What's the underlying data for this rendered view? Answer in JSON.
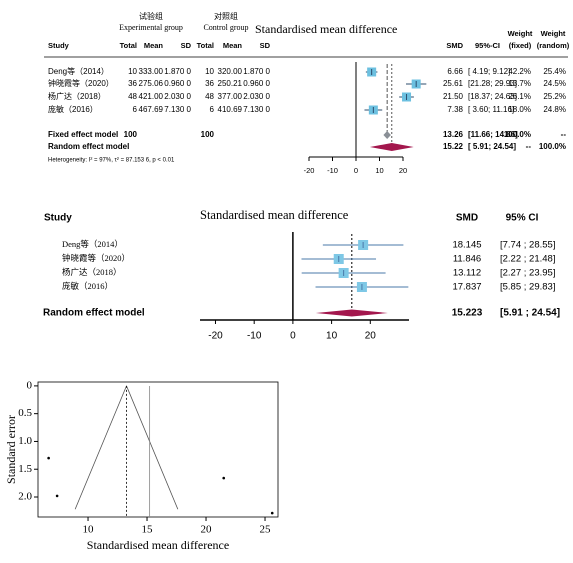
{
  "chart_data": [
    {
      "type": "forest",
      "title": "Standardised mean difference",
      "groups": [
        {
          "name": "试验组",
          "subtitle": "Experimental group"
        },
        {
          "name": "对照组",
          "subtitle": "Control group"
        }
      ],
      "columns": [
        "Study",
        "Total",
        "Mean",
        "SD",
        "Total",
        "Mean",
        "SD",
        "SMD",
        "95%-CI"
      ],
      "weight_headers": [
        [
          "Weight",
          "(fixed)"
        ],
        [
          "Weight",
          "(random)"
        ]
      ],
      "studies": [
        "Deng等（2014）",
        "钟晓霞等（2020）",
        "杨广达（2018）",
        "庞敏（2016）"
      ],
      "table": [
        [
          "10",
          "333.00",
          "1.870 0",
          "10",
          "320.00",
          "1.870 0"
        ],
        [
          "36",
          "275.06",
          "0.960 0",
          "36",
          "250.21",
          "0.960 0"
        ],
        [
          "48",
          "421.00",
          "2.030 0",
          "48",
          "377.00",
          "2.030 0"
        ],
        [
          "6",
          "467.69",
          "7.130 0",
          "6",
          "410.69",
          "7.130 0"
        ]
      ],
      "values": [
        6.66,
        25.61,
        21.5,
        7.38
      ],
      "value_labels": [
        "6.66",
        "25.61",
        "21.50",
        "7.38"
      ],
      "ci": [
        [
          4.19,
          9.12
        ],
        [
          21.28,
          29.93
        ],
        [
          18.37,
          24.63
        ],
        [
          3.6,
          11.16
        ]
      ],
      "ci_labels": [
        "[ 4.19; 9.12]",
        "[21.28; 29.93]",
        "[18.37; 24.63]",
        "[ 3.60; 11.16]"
      ],
      "weights_fixed": [
        42.2,
        13.7,
        26.1,
        18.0
      ],
      "weights_fixed_labels": [
        "42.2%",
        "13.7%",
        "26.1%",
        "18.0%"
      ],
      "weights_random": [
        25.4,
        24.5,
        25.2,
        24.8
      ],
      "weights_random_labels": [
        "25.4%",
        "24.5%",
        "25.2%",
        "24.8%"
      ],
      "summary": [
        {
          "label": "Fixed effect model",
          "totals": [
            "100",
            "100"
          ],
          "value": 13.26,
          "value_label": "13.26",
          "ci": [
            11.66,
            14.86
          ],
          "ci_label": "[11.66; 14.86]",
          "weights": [
            "100.0%",
            "--"
          ]
        },
        {
          "label": "Random effect  model",
          "value": 15.22,
          "value_label": "15.22",
          "ci": [
            5.91,
            24.54
          ],
          "ci_label": "[ 5.91; 24.54]",
          "weights": [
            "--",
            "100.0%"
          ]
        }
      ],
      "heterogeneity": "Heterogeneity: I² = 97%, τ² = 87.153 6, p < 0.01",
      "xlim": [
        -20,
        20
      ],
      "xticks": [
        -20,
        -10,
        0,
        10,
        20
      ],
      "colors": {
        "study": "#6cc0e0",
        "ci": "#2d4d6d",
        "summary": [
          "#8a8f96",
          "#a3174d"
        ]
      }
    },
    {
      "type": "forest",
      "title": "Standardised mean difference",
      "columns": [
        "Study",
        "SMD",
        "95% CI"
      ],
      "studies": [
        "Deng等（2014）",
        "钟晓霞等（2020）",
        "杨广达（2018）",
        "庞敏（2016）"
      ],
      "values": [
        18.145,
        11.846,
        13.112,
        17.837
      ],
      "ci": [
        [
          7.74,
          28.55
        ],
        [
          2.22,
          21.48
        ],
        [
          2.27,
          23.95
        ],
        [
          5.85,
          29.83
        ]
      ],
      "ci_labels": [
        "[7.74 ; 28.55]",
        "[2.22 ; 21.48]",
        "[2.27 ; 23.95]",
        "[5.85 ; 29.83]"
      ],
      "summary": [
        {
          "label": "Random effect  model",
          "value": 15.223,
          "ci": [
            5.91,
            24.54
          ],
          "ci_label": "[5.91 ; 24.54]"
        }
      ],
      "xlim": [
        -24,
        30
      ],
      "xticks": [
        -20,
        -10,
        0,
        10,
        20
      ],
      "colors": {
        "study": "#7ec8e6",
        "ci": "#4a78a8",
        "summary": [
          "#a3174d"
        ]
      }
    },
    {
      "type": "scatter",
      "xlabel": "Standardised mean difference",
      "ylabel": "Standard error",
      "x": [
        6.66,
        7.38,
        21.5,
        25.61
      ],
      "values": [
        1.3,
        1.98,
        1.66,
        2.29
      ],
      "xlim": [
        5.76,
        26.1
      ],
      "xticks": [
        10,
        15,
        20,
        25
      ],
      "ylim": [
        -0.07,
        2.36
      ],
      "yticks": [
        0,
        0.5,
        {
          "value": 1,
          "label": "1.0"
        },
        1.5,
        {
          "value": 2,
          "label": "2.0"
        }
      ],
      "y_inverted": true,
      "reference_lines": [
        {
          "value": 13.26,
          "style": "dotted"
        },
        {
          "value": 15.22,
          "style": "solid"
        }
      ],
      "funnel": {
        "center": 13.26,
        "se_max": 2.22
      },
      "color": "#000000"
    }
  ]
}
